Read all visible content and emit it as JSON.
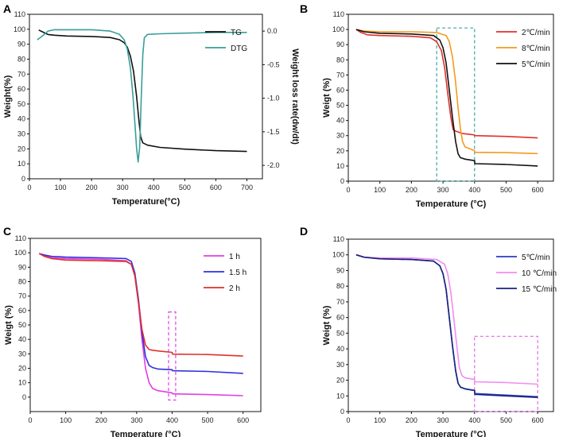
{
  "chart_data": [
    {
      "panel": "A",
      "type": "line",
      "xlabel": "Temperature(°C)",
      "ylabel": "Weight(%)",
      "y2label": "Weight loss rate(dw/dt)",
      "xlim": [
        0,
        750
      ],
      "ylim": [
        0,
        110
      ],
      "y2lim": [
        -2.2,
        0.25
      ],
      "xticks": [
        0,
        100,
        200,
        300,
        400,
        500,
        600,
        700
      ],
      "yticks": [
        0,
        10,
        20,
        30,
        40,
        50,
        60,
        70,
        80,
        90,
        100,
        110
      ],
      "y2ticks": [
        0.0,
        -0.5,
        -1.0,
        -1.5,
        -2.0
      ],
      "y2ticklabels": [
        "0.0",
        "-0.5",
        "-1.0",
        "-1.5",
        "-2.0"
      ],
      "legend_position": "top-right",
      "series": [
        {
          "name": "TG",
          "color": "#111111",
          "axis": "left",
          "x": [
            30,
            45,
            60,
            80,
            120,
            200,
            260,
            290,
            305,
            315,
            325,
            335,
            345,
            352,
            358,
            365,
            380,
            420,
            500,
            600,
            700
          ],
          "y": [
            99.5,
            98,
            96.5,
            96,
            95.5,
            95.2,
            94.5,
            93,
            91,
            88,
            82,
            72,
            55,
            40,
            28,
            24,
            22.5,
            21,
            19.8,
            18.8,
            18.3
          ]
        },
        {
          "name": "DTG",
          "color": "#3a9e9a",
          "axis": "right",
          "x": [
            25,
            40,
            60,
            80,
            110,
            200,
            260,
            290,
            305,
            315,
            325,
            333,
            340,
            345,
            350,
            355,
            360,
            365,
            370,
            380,
            420,
            500,
            600,
            700
          ],
          "y": [
            -0.13,
            -0.08,
            0.0,
            0.02,
            0.02,
            0.02,
            0.0,
            -0.05,
            -0.13,
            -0.27,
            -0.55,
            -0.95,
            -1.4,
            -1.75,
            -1.95,
            -1.72,
            -1.0,
            -0.35,
            -0.1,
            -0.05,
            -0.04,
            -0.03,
            -0.02,
            -0.02
          ]
        }
      ]
    },
    {
      "panel": "B",
      "type": "line",
      "xlabel": "Temperature (°C)",
      "ylabel": "Weigt (%)",
      "xlim": [
        0,
        650
      ],
      "ylim": [
        0,
        110
      ],
      "xticks": [
        0,
        100,
        200,
        300,
        400,
        500,
        600
      ],
      "yticks": [
        0,
        10,
        20,
        30,
        40,
        50,
        60,
        70,
        80,
        90,
        100,
        110
      ],
      "legend_position": "top-right",
      "highlight_box": {
        "x": [
          280,
          400
        ],
        "y": [
          0,
          101
        ],
        "color": "#3aa6a0"
      },
      "series": [
        {
          "name": "2℃/min",
          "color": "#e0302b",
          "x": [
            25,
            40,
            60,
            100,
            200,
            260,
            280,
            295,
            305,
            315,
            325,
            332,
            340,
            360,
            400,
            401,
            500,
            600
          ],
          "y": [
            100,
            98,
            96.5,
            96,
            95.5,
            94.5,
            92,
            86,
            75,
            58,
            42,
            34,
            33,
            31.5,
            30.5,
            30,
            29.5,
            28.5
          ]
        },
        {
          "name": "8℃/min",
          "color": "#f39a1e",
          "x": [
            25,
            50,
            100,
            200,
            280,
            310,
            320,
            330,
            340,
            348,
            355,
            362,
            370,
            390,
            400,
            401,
            500,
            600
          ],
          "y": [
            100,
            99,
            98.5,
            98.5,
            98,
            96,
            92,
            82,
            65,
            48,
            35,
            26,
            22.5,
            21,
            20,
            19,
            18.8,
            18.2
          ]
        },
        {
          "name": "5℃/min",
          "color": "#111111",
          "x": [
            25,
            50,
            100,
            200,
            270,
            290,
            300,
            310,
            320,
            330,
            340,
            348,
            355,
            370,
            400,
            401,
            500,
            600
          ],
          "y": [
            100,
            98.5,
            97.5,
            97,
            96,
            93,
            88,
            78,
            60,
            42,
            26,
            18,
            15.5,
            14.5,
            13.5,
            11.5,
            11,
            10
          ]
        }
      ]
    },
    {
      "panel": "C",
      "type": "line",
      "xlabel": "Temperature (°C)",
      "ylabel": "Weigt (%)",
      "xlim": [
        0,
        650
      ],
      "ylim": [
        -10,
        110
      ],
      "xticks": [
        0,
        100,
        200,
        300,
        400,
        500,
        600
      ],
      "yticks": [
        0,
        10,
        20,
        30,
        40,
        50,
        60,
        70,
        80,
        90,
        100,
        110
      ],
      "legend_position": "top-right",
      "highlight_box": {
        "x": [
          390,
          410
        ],
        "y": [
          -2,
          59
        ],
        "color": "#e040e0"
      },
      "series": [
        {
          "name": "1 h",
          "color": "#e040e0",
          "x": [
            25,
            40,
            60,
            100,
            200,
            270,
            285,
            295,
            305,
            315,
            325,
            335,
            345,
            360,
            400,
            401,
            500,
            600
          ],
          "y": [
            99.5,
            98,
            96.5,
            96,
            95.5,
            94.5,
            92,
            84,
            65,
            40,
            20,
            10,
            6,
            4.5,
            3,
            2.3,
            1.8,
            1
          ]
        },
        {
          "name": "1.5 h",
          "color": "#2f2fe0",
          "x": [
            25,
            40,
            60,
            100,
            200,
            270,
            285,
            295,
            305,
            315,
            325,
            335,
            345,
            360,
            400,
            401,
            500,
            600
          ],
          "y": [
            99.5,
            98.5,
            97.5,
            97,
            96.5,
            96,
            94,
            86,
            68,
            45,
            28,
            22,
            20.5,
            19.5,
            19,
            18.3,
            17.8,
            16.5
          ]
        },
        {
          "name": "2 h",
          "color": "#e0302b",
          "x": [
            25,
            40,
            60,
            100,
            200,
            270,
            285,
            295,
            305,
            315,
            325,
            335,
            345,
            360,
            400,
            401,
            500,
            600
          ],
          "y": [
            99.5,
            97.5,
            96,
            95,
            94.5,
            94,
            92,
            84,
            66,
            47,
            36,
            33,
            32.5,
            32,
            31,
            29.8,
            29.5,
            28.5
          ]
        }
      ]
    },
    {
      "panel": "D",
      "type": "line",
      "xlabel": "Temperature (°C)",
      "ylabel": "Weigt (%)",
      "xlim": [
        0,
        650
      ],
      "ylim": [
        0,
        110
      ],
      "xticks": [
        0,
        100,
        200,
        300,
        400,
        500,
        600
      ],
      "yticks": [
        0,
        10,
        20,
        30,
        40,
        50,
        60,
        70,
        80,
        90,
        100,
        110
      ],
      "legend_position": "top-right",
      "highlight_box": {
        "x": [
          400,
          600
        ],
        "y": [
          0,
          48
        ],
        "color": "#e06ae0"
      },
      "series": [
        {
          "name": "5℃/min",
          "color": "#2b3bbf",
          "x": [
            25,
            50,
            100,
            200,
            270,
            290,
            300,
            310,
            320,
            330,
            340,
            348,
            356,
            370,
            400,
            401,
            500,
            600
          ],
          "y": [
            100,
            98.5,
            97.5,
            97,
            96,
            93,
            88,
            78,
            60,
            42,
            26,
            18,
            15.5,
            14.5,
            13.5,
            11.5,
            10.5,
            9.5
          ]
        },
        {
          "name": "10 ℃/min",
          "color": "#f28cf0",
          "x": [
            25,
            50,
            100,
            200,
            280,
            305,
            315,
            325,
            335,
            345,
            352,
            360,
            370,
            400,
            401,
            500,
            600
          ],
          "y": [
            100,
            98.5,
            98,
            98,
            97,
            94,
            88,
            76,
            58,
            40,
            28,
            23,
            21.5,
            20.5,
            19,
            18.5,
            17.5
          ]
        },
        {
          "name": "15 ℃/min",
          "color": "#1a237e",
          "x": [
            25,
            50,
            100,
            200,
            270,
            290,
            300,
            310,
            320,
            330,
            340,
            348,
            356,
            370,
            400,
            401,
            500,
            600
          ],
          "y": [
            100,
            98.5,
            97.5,
            97,
            96,
            93,
            88,
            78,
            60,
            42,
            26,
            18,
            15.5,
            14.5,
            13.5,
            11,
            10,
            9
          ]
        }
      ]
    }
  ]
}
